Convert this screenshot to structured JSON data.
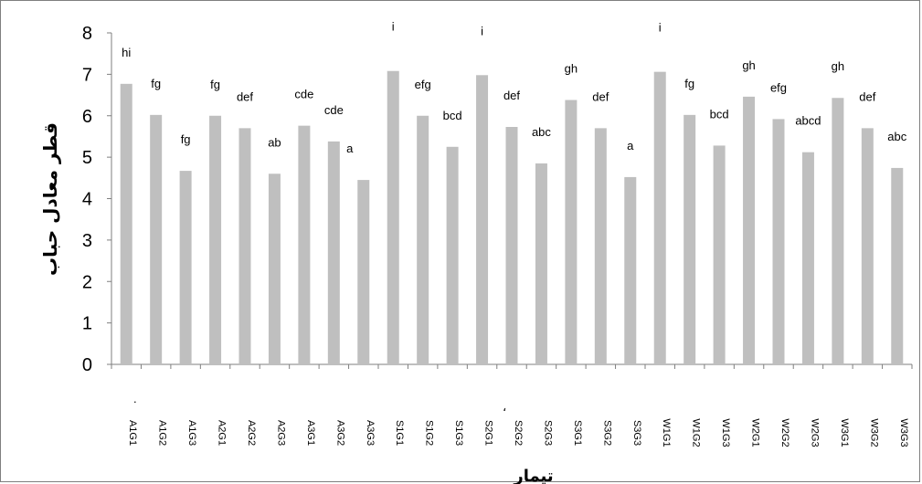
{
  "chart_data": {
    "type": "bar",
    "ylabel": "قطر معادل حباب",
    "xlabel": "تیمار",
    "ylim": [
      0,
      8
    ],
    "yticks": [
      0,
      1,
      2,
      3,
      4,
      5,
      6,
      7,
      8
    ],
    "categories": [
      "A1G1",
      "A1G2",
      "A1G3",
      "A2G1",
      "A2G2",
      "A2G3",
      "A3G1",
      "A3G2",
      "A3G3",
      "S1G1",
      "S1G2",
      "S1G3",
      "S2G1",
      "S2G2",
      "S2G3",
      "S3G1",
      "S3G2",
      "S3G3",
      "W1G1",
      "W1G2",
      "W1G3",
      "W2G1",
      "W2G2",
      "W2G3",
      "W3G1",
      "W3G2",
      "W3G3"
    ],
    "values": [
      6.77,
      6.02,
      4.67,
      6.0,
      5.7,
      4.6,
      5.76,
      5.38,
      4.45,
      7.08,
      6.0,
      5.25,
      6.98,
      5.73,
      4.85,
      6.38,
      5.7,
      4.52,
      7.06,
      6.02,
      5.28,
      6.46,
      5.92,
      5.12,
      6.43,
      5.7,
      4.74
    ],
    "labels": [
      "hi",
      "fg",
      "fg",
      "fg",
      "def",
      "ab",
      "cde",
      "cde",
      "a",
      "i",
      "efg",
      "bcd",
      "i",
      "def",
      "abc",
      "gh",
      "def",
      "a",
      "i",
      "fg",
      "bcd",
      "gh",
      "efg",
      "abcd",
      "gh",
      "def",
      "abc"
    ],
    "bar_color": "#bfbfbf",
    "grid": false,
    "legend": "none"
  },
  "stray_marks": {
    "dot": ".",
    "comma": "،"
  }
}
